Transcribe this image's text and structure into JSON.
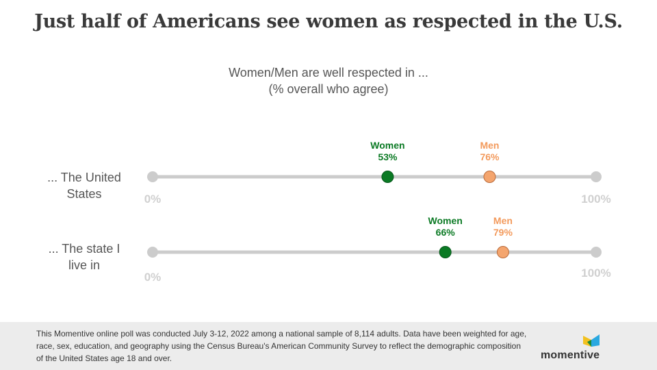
{
  "header": {
    "title": "Just half of Americans see women as respected in the U.S.",
    "subtitle_line1": "Women/Men are well respected in ...",
    "subtitle_line2": "(% overall who agree)"
  },
  "chart_data": {
    "type": "dot",
    "title": "Just half of Americans see women as respected in the U.S.",
    "subtitle": "Women/Men are well respected in ... (% overall who agree)",
    "xlim": [
      0,
      100
    ],
    "axis_labels": [
      "0%",
      "100%"
    ],
    "rows": [
      {
        "label_line1": "... The United",
        "label_line2": "States",
        "points": [
          {
            "name": "Women",
            "value": 53,
            "label": "53%",
            "color": "#0b7a24"
          },
          {
            "name": "Men",
            "value": 76,
            "label": "76%",
            "color": "#f4a56e"
          }
        ]
      },
      {
        "label_line1": "... The state I",
        "label_line2": "live in",
        "points": [
          {
            "name": "Women",
            "value": 66,
            "label": "66%",
            "color": "#0b7a24"
          },
          {
            "name": "Men",
            "value": 79,
            "label": "79%",
            "color": "#f4a56e"
          }
        ]
      }
    ],
    "colors": {
      "track": "#cccccc",
      "axis_text": "#d0d0d0",
      "women": "#0b7a24",
      "men": "#f4a56e",
      "men_text": "#f39a5c"
    }
  },
  "footer": {
    "note": "This Momentive online poll was conducted July 3-12, 2022 among a national sample of 8,114 adults. Data have been weighted for age, race, sex, education, and geography using the Census Bureau's American Community Survey to reflect the demographic composition of the United States age 18 and over.",
    "logo_text": "momentive"
  }
}
